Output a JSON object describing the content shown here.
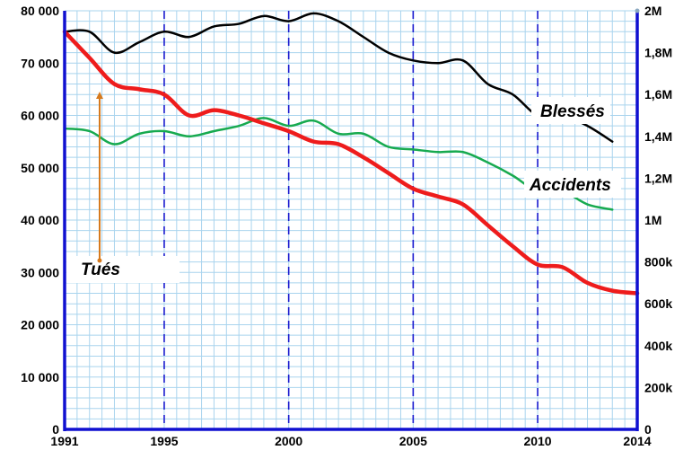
{
  "chart_data": {
    "type": "line",
    "x_ticks": [
      "1991",
      "1995",
      "2000",
      "2005",
      "2010",
      "2014"
    ],
    "y_left_ticks": [
      "0",
      "10 000",
      "20 000",
      "30 000",
      "40 000",
      "50 000",
      "60 000",
      "70 000",
      "80 000"
    ],
    "y_right_ticks": [
      "0",
      "200k",
      "400k",
      "600k",
      "800k",
      "1M",
      "1,2M",
      "1,4M",
      "1,6M",
      "1,8M",
      "2M"
    ],
    "xlim": [
      1991,
      2014
    ],
    "ylim_left": [
      0,
      80000
    ],
    "ylim_right": [
      0,
      2000000
    ],
    "grid": true,
    "series": [
      {
        "name": "Blessés",
        "axis": "left",
        "color": "#000000",
        "x": [
          1991,
          1992,
          1993,
          1994,
          1995,
          1996,
          1997,
          1998,
          1999,
          2000,
          2001,
          2002,
          2003,
          2004,
          2005,
          2006,
          2007,
          2008,
          2009,
          2010,
          2011,
          2012,
          2013
        ],
        "values": [
          76000,
          76000,
          72000,
          74000,
          76000,
          75000,
          77000,
          77500,
          79000,
          78000,
          79500,
          78000,
          75000,
          72000,
          70500,
          70000,
          70500,
          66000,
          64000,
          60000,
          60000,
          58000,
          55000
        ]
      },
      {
        "name": "Accidents",
        "axis": "left",
        "color": "#17aa4f",
        "x": [
          1991,
          1992,
          1993,
          1994,
          1995,
          1996,
          1997,
          1998,
          1999,
          2000,
          2001,
          2002,
          2003,
          2004,
          2005,
          2006,
          2007,
          2008,
          2009,
          2010,
          2011,
          2012,
          2013
        ],
        "values": [
          57500,
          57000,
          54500,
          56500,
          57000,
          56000,
          57000,
          58000,
          59500,
          58000,
          59000,
          56500,
          56500,
          54000,
          53500,
          53000,
          53000,
          51000,
          48500,
          45500,
          45500,
          43000,
          42000
        ]
      },
      {
        "name": "Tués",
        "axis": "left",
        "color": "#ee1c1c",
        "x": [
          1991,
          1992,
          1993,
          1994,
          1995,
          1996,
          1997,
          1998,
          1999,
          2000,
          2001,
          2002,
          2003,
          2004,
          2005,
          2006,
          2007,
          2008,
          2009,
          2010,
          2011,
          2012,
          2013,
          2014
        ],
        "values": [
          76000,
          71000,
          66000,
          65000,
          64000,
          60000,
          61000,
          60000,
          58500,
          57000,
          55000,
          54500,
          52000,
          49000,
          46000,
          44500,
          43000,
          39000,
          35000,
          31500,
          31000,
          28000,
          26500,
          26000
        ]
      }
    ],
    "annotations": [
      "Blessés",
      "Accidents",
      "Tués"
    ]
  }
}
